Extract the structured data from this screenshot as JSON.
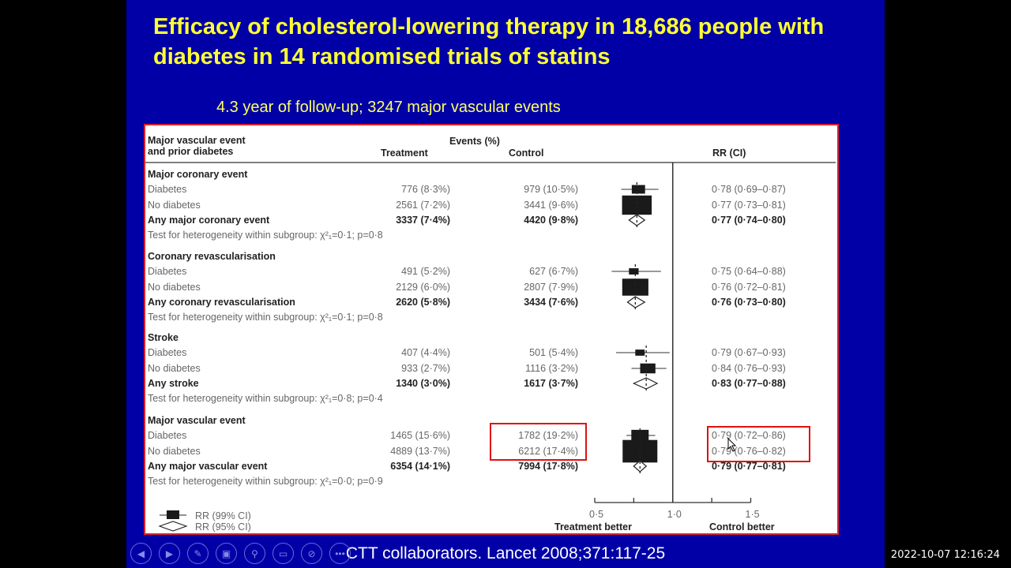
{
  "slide": {
    "title": "Efficacy of cholesterol-lowering therapy in 18,686 people with diabetes in 14 randomised trials of statins",
    "subtitle": "4.3 year of follow-up; 3247 major vascular events",
    "caption": "CTT collaborators. Lancet 2008;371:117-25"
  },
  "toolbar": {
    "buttons": [
      "previous-icon",
      "next-icon",
      "pen-icon",
      "slides-icon",
      "zoom-icon",
      "subtitles-icon",
      "camera-off-icon",
      "more-icon"
    ]
  },
  "timestamp": "2022-10-07  12:16:24",
  "colors": {
    "slide_bg": "#0000a6",
    "title": "#ffff33",
    "highlight": "#e01010"
  },
  "chart_data": {
    "type": "forest",
    "header": {
      "col1_line1": "Major vascular event",
      "col1_line2": "and prior diabetes",
      "events": "Events (%)",
      "treatment": "Treatment",
      "control": "Control",
      "rr": "RR (CI)"
    },
    "x_axis": {
      "scale": "log",
      "ticks": [
        "0·5",
        "1·0",
        "1·5"
      ],
      "tick_values": [
        0.5,
        1.0,
        1.5
      ],
      "minor_ticks": [
        0.75,
        1.25
      ],
      "reference": 1.0,
      "left_label": "Treatment better",
      "right_label": "Control better"
    },
    "legend": [
      {
        "symbol": "square",
        "label": "RR (99% CI)"
      },
      {
        "symbol": "diamond",
        "label": "RR (95% CI)"
      }
    ],
    "groups": [
      {
        "name": "Major coronary event",
        "heterogeneity": "Test for heterogeneity within subgroup: χ²₁=0·1; p=0·8",
        "rows": [
          {
            "label": "Diabetes",
            "treatment": "776 (8·3%)",
            "control": "979 (10·5%)",
            "rr_text": "0·78 (0·69–0·87)",
            "rr": 0.78,
            "lo": 0.69,
            "hi": 0.87,
            "total": false
          },
          {
            "label": "No diabetes",
            "treatment": "2561 (7·2%)",
            "control": "3441 (9·6%)",
            "rr_text": "0·77 (0·73–0·81)",
            "rr": 0.77,
            "lo": 0.73,
            "hi": 0.81,
            "total": false
          },
          {
            "label": "Any major coronary event",
            "treatment": "3337 (7·4%)",
            "control": "4420 (9·8%)",
            "rr_text": "0·77 (0·74–0·80)",
            "rr": 0.77,
            "lo": 0.74,
            "hi": 0.8,
            "total": true
          }
        ]
      },
      {
        "name": "Coronary revascularisation",
        "heterogeneity": "Test for heterogeneity within subgroup: χ²₁=0·1; p=0·8",
        "rows": [
          {
            "label": "Diabetes",
            "treatment": "491 (5·2%)",
            "control": "627 (6·7%)",
            "rr_text": "0·75 (0·64–0·88)",
            "rr": 0.75,
            "lo": 0.64,
            "hi": 0.88,
            "total": false
          },
          {
            "label": "No diabetes",
            "treatment": "2129 (6·0%)",
            "control": "2807 (7·9%)",
            "rr_text": "0·76 (0·72–0·81)",
            "rr": 0.76,
            "lo": 0.72,
            "hi": 0.81,
            "total": false
          },
          {
            "label": "Any coronary revascularisation",
            "treatment": "2620 (5·8%)",
            "control": "3434 (7·6%)",
            "rr_text": "0·76 (0·73–0·80)",
            "rr": 0.76,
            "lo": 0.73,
            "hi": 0.8,
            "total": true
          }
        ]
      },
      {
        "name": "Stroke",
        "heterogeneity": "Test for heterogeneity within subgroup: χ²₁=0·8; p=0·4",
        "rows": [
          {
            "label": "Diabetes",
            "treatment": "407 (4·4%)",
            "control": "501 (5·4%)",
            "rr_text": "0·79 (0·67–0·93)",
            "rr": 0.79,
            "lo": 0.67,
            "hi": 0.93,
            "total": false
          },
          {
            "label": "No diabetes",
            "treatment": "933 (2·7%)",
            "control": "1116 (3·2%)",
            "rr_text": "0·84 (0·76–0·93)",
            "rr": 0.84,
            "lo": 0.76,
            "hi": 0.93,
            "total": false
          },
          {
            "label": "Any stroke",
            "treatment": "1340 (3·0%)",
            "control": "1617 (3·7%)",
            "rr_text": "0·83 (0·77–0·88)",
            "rr": 0.83,
            "lo": 0.77,
            "hi": 0.88,
            "total": true
          }
        ]
      },
      {
        "name": "Major vascular event",
        "heterogeneity": "Test for heterogeneity within subgroup: χ²₁=0·0; p=0·9",
        "rows": [
          {
            "label": "Diabetes",
            "treatment": "1465 (15·6%)",
            "control": "1782 (19·2%)",
            "rr_text": "0·79 (0·72–0·86)",
            "rr": 0.79,
            "lo": 0.72,
            "hi": 0.86,
            "total": false
          },
          {
            "label": "No diabetes",
            "treatment": "4889 (13·7%)",
            "control": "6212 (17·4%)",
            "rr_text": "0·79 (0·76–0·82)",
            "rr": 0.79,
            "lo": 0.76,
            "hi": 0.82,
            "total": false
          },
          {
            "label": "Any major vascular event",
            "treatment": "6354 (14·1%)",
            "control": "7994 (17·8%)",
            "rr_text": "0·79 (0·77–0·81)",
            "rr": 0.79,
            "lo": 0.77,
            "hi": 0.81,
            "total": true
          }
        ]
      }
    ]
  }
}
